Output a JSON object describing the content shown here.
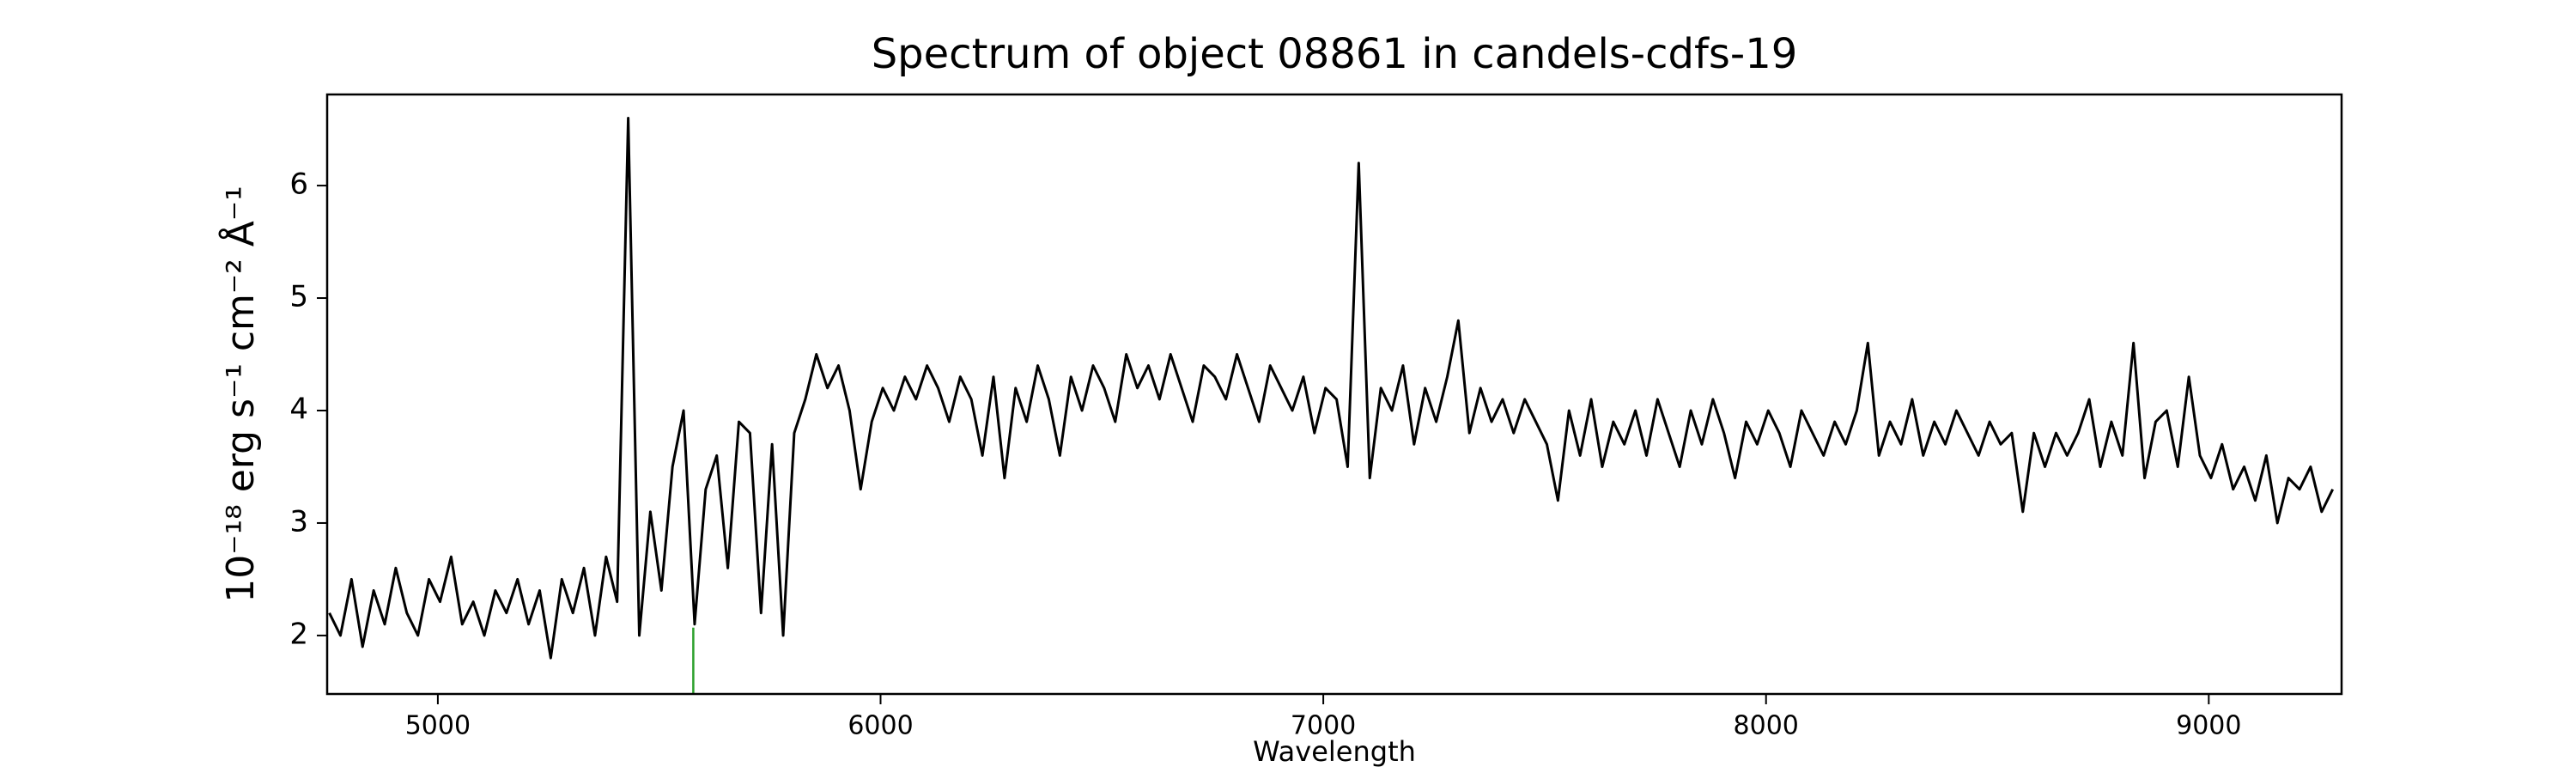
{
  "chart_data": {
    "type": "line",
    "title": "Spectrum of object 08861 in candels-cdfs-19",
    "xlabel": "Wavelength",
    "ylabel": "10⁻¹⁸ erg s⁻¹ cm⁻² Å⁻¹",
    "xlim": [
      4750,
      9300
    ],
    "ylim": [
      1.48,
      6.81
    ],
    "xticks": [
      5000,
      6000,
      7000,
      8000,
      9000
    ],
    "yticks": [
      2,
      3,
      4,
      5,
      6
    ],
    "grid": false,
    "x": [
      4755,
      4780,
      4805,
      4830,
      4855,
      4880,
      4905,
      4930,
      4955,
      4980,
      5005,
      5030,
      5055,
      5080,
      5105,
      5130,
      5155,
      5180,
      5205,
      5230,
      5255,
      5280,
      5305,
      5330,
      5355,
      5380,
      5405,
      5430,
      5455,
      5480,
      5505,
      5530,
      5555,
      5580,
      5605,
      5630,
      5655,
      5680,
      5705,
      5730,
      5755,
      5780,
      5805,
      5830,
      5855,
      5880,
      5905,
      5930,
      5955,
      5980,
      6005,
      6030,
      6055,
      6080,
      6105,
      6130,
      6155,
      6180,
      6205,
      6230,
      6255,
      6280,
      6305,
      6330,
      6355,
      6380,
      6405,
      6430,
      6455,
      6480,
      6505,
      6530,
      6555,
      6580,
      6605,
      6630,
      6655,
      6680,
      6705,
      6730,
      6755,
      6780,
      6805,
      6830,
      6855,
      6880,
      6905,
      6930,
      6955,
      6980,
      7005,
      7030,
      7055,
      7080,
      7105,
      7130,
      7155,
      7180,
      7205,
      7230,
      7255,
      7280,
      7305,
      7330,
      7355,
      7380,
      7405,
      7430,
      7455,
      7480,
      7505,
      7530,
      7555,
      7580,
      7605,
      7630,
      7655,
      7680,
      7705,
      7730,
      7755,
      7780,
      7805,
      7830,
      7855,
      7880,
      7905,
      7930,
      7955,
      7980,
      8005,
      8030,
      8055,
      8080,
      8105,
      8130,
      8155,
      8180,
      8205,
      8230,
      8255,
      8280,
      8305,
      8330,
      8355,
      8380,
      8405,
      8430,
      8455,
      8480,
      8505,
      8530,
      8555,
      8580,
      8605,
      8630,
      8655,
      8680,
      8705,
      8730,
      8755,
      8780,
      8805,
      8830,
      8855,
      8880,
      8905,
      8930,
      8955,
      8980,
      9005,
      9030,
      9055,
      9080,
      9105,
      9130,
      9155,
      9180,
      9205,
      9230,
      9255,
      9280
    ],
    "series": [
      {
        "color": "#000000",
        "values": [
          2.2,
          2.0,
          2.5,
          1.9,
          2.4,
          2.1,
          2.6,
          2.2,
          2.0,
          2.5,
          2.3,
          2.7,
          2.1,
          2.3,
          2.0,
          2.4,
          2.2,
          2.5,
          2.1,
          2.4,
          1.8,
          2.5,
          2.2,
          2.6,
          2.0,
          2.7,
          2.3,
          6.6,
          2.0,
          3.1,
          2.4,
          3.5,
          4.0,
          2.1,
          3.3,
          3.6,
          2.6,
          3.9,
          3.8,
          2.2,
          3.7,
          2.0,
          3.8,
          4.1,
          4.5,
          4.2,
          4.4,
          4.0,
          3.3,
          3.9,
          4.2,
          4.0,
          4.3,
          4.1,
          4.4,
          4.2,
          3.9,
          4.3,
          4.1,
          3.6,
          4.3,
          3.4,
          4.2,
          3.9,
          4.4,
          4.1,
          3.6,
          4.3,
          4.0,
          4.4,
          4.2,
          3.9,
          4.5,
          4.2,
          4.4,
          4.1,
          4.5,
          4.2,
          3.9,
          4.4,
          4.3,
          4.1,
          4.5,
          4.2,
          3.9,
          4.4,
          4.2,
          4.0,
          4.3,
          3.8,
          4.2,
          4.1,
          3.5,
          6.2,
          3.4,
          4.2,
          4.0,
          4.4,
          3.7,
          4.2,
          3.9,
          4.3,
          4.8,
          3.8,
          4.2,
          3.9,
          4.1,
          3.8,
          4.1,
          3.9,
          3.7,
          3.2,
          4.0,
          3.6,
          4.1,
          3.5,
          3.9,
          3.7,
          4.0,
          3.6,
          4.1,
          3.8,
          3.5,
          4.0,
          3.7,
          4.1,
          3.8,
          3.4,
          3.9,
          3.7,
          4.0,
          3.8,
          3.5,
          4.0,
          3.8,
          3.6,
          3.9,
          3.7,
          4.0,
          4.6,
          3.6,
          3.9,
          3.7,
          4.1,
          3.6,
          3.9,
          3.7,
          4.0,
          3.8,
          3.6,
          3.9,
          3.7,
          3.8,
          3.1,
          3.8,
          3.5,
          3.8,
          3.6,
          3.8,
          4.1,
          3.5,
          3.9,
          3.6,
          4.6,
          3.4,
          3.9,
          4.0,
          3.5,
          4.3,
          3.6,
          3.4,
          3.7,
          3.3,
          3.5,
          3.2,
          3.6,
          3.0,
          3.4,
          3.3,
          3.5,
          3.1,
          3.3
        ]
      }
    ],
    "vlines": [
      {
        "x": 5577,
        "ymax": 2.07,
        "color": "#2ca02c"
      }
    ]
  }
}
